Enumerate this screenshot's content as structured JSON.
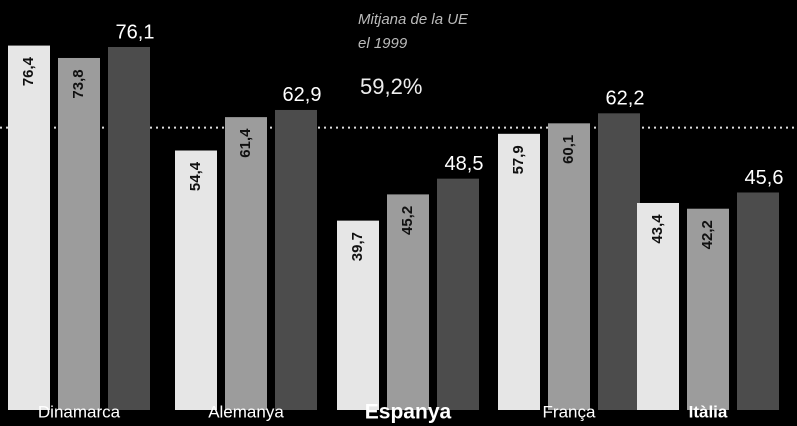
{
  "chart_data": {
    "type": "bar",
    "categories": [
      "Dinamarca",
      "Alemanya",
      "Espanya",
      "França",
      "Itàlia"
    ],
    "series": [
      {
        "color": "#e6e6e6",
        "values": [
          76.4,
          54.4,
          39.7,
          57.9,
          43.4
        ],
        "value_labels": [
          "76,4",
          "54,4",
          "39,7",
          "57,9",
          "43,4"
        ]
      },
      {
        "color": "#9c9c9c",
        "values": [
          73.8,
          61.4,
          45.2,
          60.1,
          42.2
        ],
        "value_labels": [
          "73,8",
          "61,4",
          "45,2",
          "60,1",
          "42,2"
        ]
      },
      {
        "color": "#4c4c4c",
        "values": [
          76.1,
          62.9,
          48.5,
          62.2,
          45.6
        ],
        "value_labels": [
          "76,1",
          "62,9",
          "48,5",
          "62,2",
          "45,6"
        ]
      }
    ],
    "reference": {
      "value": 59.2,
      "label": "59,2%"
    },
    "annotation": [
      "Mitjana de la UE",
      "el 1999"
    ]
  }
}
